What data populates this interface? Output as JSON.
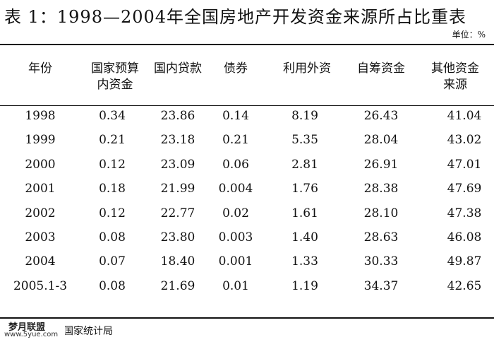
{
  "title": "表 1：1998—2004年全国房地产开发资金来源所占比重表",
  "unit": "单位：%",
  "headers": [
    "年份",
    "国家预算\n内资金",
    "国内贷款",
    "债券",
    "利用外资",
    "自筹资金",
    "其他资金\n来源"
  ],
  "rows": [
    [
      "1998",
      "0.34",
      "23.86",
      "0.14",
      "8.19",
      "26.43",
      "41.04"
    ],
    [
      "1999",
      "0.21",
      "23.18",
      "0.21",
      "5.35",
      "28.04",
      "43.02"
    ],
    [
      "2000",
      "0.12",
      "23.09",
      "0.06",
      "2.81",
      "26.91",
      "47.01"
    ],
    [
      "2001",
      "0.18",
      "21.99",
      "0.004",
      "1.76",
      "28.38",
      "47.69"
    ],
    [
      "2002",
      "0.12",
      "22.77",
      "0.02",
      "1.61",
      "28.10",
      "47.38"
    ],
    [
      "2003",
      "0.08",
      "23.80",
      "0.003",
      "1.40",
      "28.63",
      "46.08"
    ],
    [
      "2004",
      "0.07",
      "18.40",
      "0.001",
      "1.33",
      "30.33",
      "49.87"
    ],
    [
      "2005.1-3",
      "0.08",
      "21.69",
      "0.01",
      "1.19",
      "34.37",
      "42.65"
    ]
  ],
  "source": "国家统计局",
  "watermark": {
    "line1": "梦月联盟",
    "line2": "www.5yue.com"
  }
}
